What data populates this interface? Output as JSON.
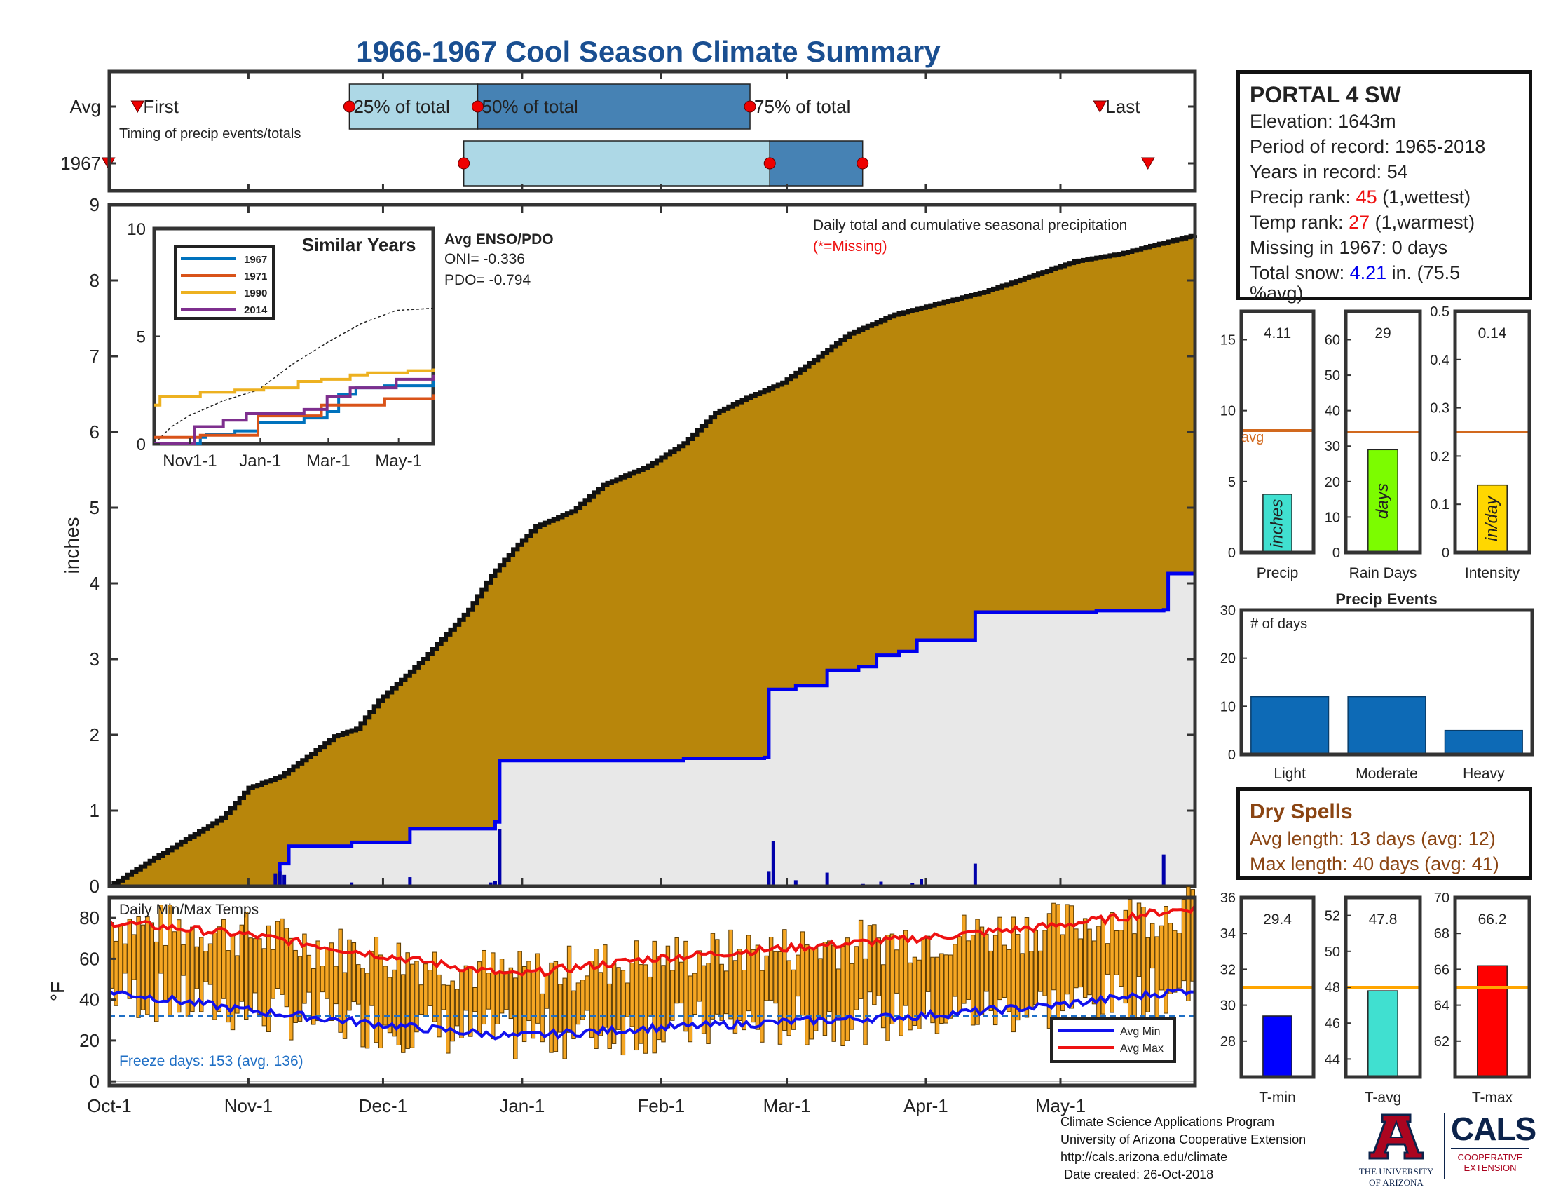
{
  "title": "1966-1967 Cool Season Climate Summary",
  "colors": {
    "title": "#1a4f91",
    "precip_fill": "#b8860b",
    "gray_fill": "#e8e8e8",
    "accent_blue": "#0000ee",
    "red": "#ee1111",
    "orange_bar": "#f5a623",
    "avg_line": "#d2691e",
    "light_blue_box": "#add8e6",
    "dark_blue_box": "#4682b4",
    "event_bar": "#0d6ab6",
    "drought_brown": "#8b4513"
  },
  "timing": {
    "rows": [
      "Avg",
      "1967"
    ],
    "labels": {
      "first": "First",
      "p25": "25% of total",
      "p50": "50% of total",
      "p75": "75% of total",
      "last": "Last"
    },
    "caption": "Timing of precip events/totals",
    "avg": {
      "first": 6.3,
      "p25": 53.5,
      "p50": 82.1,
      "p75": 142.8,
      "last": 220.8
    },
    "year": {
      "first": -0.2,
      "p25": 79.0,
      "p50": 147.2,
      "p75": 167.9,
      "last": 231.5
    }
  },
  "main_chart": {
    "ylabel": "inches",
    "ylim": [
      0,
      9
    ],
    "yticks": [
      0,
      1,
      2,
      3,
      4,
      5,
      6,
      7,
      8,
      9
    ],
    "xtick_labels": [
      "Oct-1",
      "Nov-1",
      "Dec-1",
      "Jan-1",
      "Feb-1",
      "Mar-1",
      "Apr-1",
      "May-1"
    ],
    "xtick_days": [
      0,
      31,
      61,
      92,
      123,
      151,
      182,
      212
    ],
    "days_total": 242,
    "caption_line1": "Daily total and cumulative seasonal precipitation",
    "caption_line2": "(*=Missing)",
    "avg_cumulative": [
      [
        0,
        0
      ],
      [
        8,
        0.3
      ],
      [
        15,
        0.55
      ],
      [
        25,
        0.9
      ],
      [
        31,
        1.3
      ],
      [
        38,
        1.45
      ],
      [
        45,
        1.75
      ],
      [
        50,
        1.98
      ],
      [
        55,
        2.08
      ],
      [
        60,
        2.45
      ],
      [
        70,
        3.0
      ],
      [
        80,
        3.65
      ],
      [
        85,
        4.1
      ],
      [
        90,
        4.45
      ],
      [
        95,
        4.75
      ],
      [
        103,
        4.95
      ],
      [
        110,
        5.3
      ],
      [
        120,
        5.55
      ],
      [
        128,
        5.85
      ],
      [
        135,
        6.25
      ],
      [
        142,
        6.45
      ],
      [
        150,
        6.65
      ],
      [
        157,
        6.95
      ],
      [
        165,
        7.3
      ],
      [
        175,
        7.55
      ],
      [
        185,
        7.7
      ],
      [
        195,
        7.85
      ],
      [
        205,
        8.05
      ],
      [
        215,
        8.25
      ],
      [
        225,
        8.35
      ],
      [
        235,
        8.5
      ],
      [
        242,
        8.6
      ]
    ],
    "year_cumulative": [
      [
        0,
        0
      ],
      [
        36,
        0.0
      ],
      [
        38,
        0.3
      ],
      [
        40,
        0.53
      ],
      [
        54,
        0.58
      ],
      [
        67,
        0.76
      ],
      [
        86,
        0.85
      ],
      [
        87,
        1.66
      ],
      [
        128,
        1.69
      ],
      [
        146,
        1.7
      ],
      [
        147,
        2.6
      ],
      [
        153,
        2.65
      ],
      [
        160,
        2.85
      ],
      [
        167,
        2.9
      ],
      [
        171,
        3.05
      ],
      [
        176,
        3.1
      ],
      [
        180,
        3.25
      ],
      [
        193,
        3.62
      ],
      [
        215,
        3.62
      ],
      [
        220,
        3.64
      ],
      [
        235,
        3.65
      ],
      [
        236,
        4.13
      ],
      [
        242,
        4.13
      ]
    ],
    "daily_precip": [
      [
        37,
        0.17
      ],
      [
        38,
        0.2
      ],
      [
        39,
        0.15
      ],
      [
        54,
        0.05
      ],
      [
        67,
        0.12
      ],
      [
        85,
        0.05
      ],
      [
        86,
        0.07
      ],
      [
        87,
        0.75
      ],
      [
        147,
        0.2
      ],
      [
        148,
        0.6
      ],
      [
        153,
        0.08
      ],
      [
        160,
        0.18
      ],
      [
        168,
        0.03
      ],
      [
        172,
        0.06
      ],
      [
        179,
        0.04
      ],
      [
        181,
        0.1
      ],
      [
        193,
        0.3
      ],
      [
        235,
        0.42
      ]
    ]
  },
  "inset": {
    "title": "Similar Years",
    "ylim": [
      0,
      10
    ],
    "yticks": [
      0,
      5,
      10
    ],
    "xtick_labels": [
      "Nov1-1",
      "Jan-1",
      "Mar-1",
      "May-1"
    ],
    "xtick_days": [
      31,
      92,
      151,
      212
    ],
    "enso_title": "Avg ENSO/PDO",
    "oni": "ONI= -0.336",
    "pdo": "PDO= -0.794",
    "series": [
      {
        "name": "1967",
        "color": "#0072bd",
        "points": [
          [
            0,
            0
          ],
          [
            40,
            0.3
          ],
          [
            45,
            0.45
          ],
          [
            70,
            0.6
          ],
          [
            90,
            1.0
          ],
          [
            130,
            1.2
          ],
          [
            150,
            1.5
          ],
          [
            160,
            2.3
          ],
          [
            175,
            2.6
          ],
          [
            200,
            2.7
          ],
          [
            242,
            3.0
          ]
        ]
      },
      {
        "name": "1971",
        "color": "#d95319",
        "points": [
          [
            0,
            0.3
          ],
          [
            40,
            0.4
          ],
          [
            90,
            1.3
          ],
          [
            130,
            1.3
          ],
          [
            145,
            1.8
          ],
          [
            185,
            1.8
          ],
          [
            200,
            2.1
          ],
          [
            242,
            2.3
          ]
        ]
      },
      {
        "name": "1990",
        "color": "#edb120",
        "points": [
          [
            0,
            1.8
          ],
          [
            5,
            2.2
          ],
          [
            40,
            2.4
          ],
          [
            70,
            2.5
          ],
          [
            95,
            2.6
          ],
          [
            125,
            2.9
          ],
          [
            145,
            3.0
          ],
          [
            170,
            3.2
          ],
          [
            185,
            3.3
          ],
          [
            220,
            3.4
          ],
          [
            242,
            3.5
          ]
        ]
      },
      {
        "name": "2014",
        "color": "#7e2f8e",
        "points": [
          [
            0,
            0
          ],
          [
            30,
            0
          ],
          [
            35,
            0.8
          ],
          [
            60,
            1.1
          ],
          [
            80,
            1.4
          ],
          [
            130,
            1.6
          ],
          [
            150,
            2.2
          ],
          [
            170,
            2.6
          ],
          [
            210,
            3.0
          ],
          [
            242,
            3.2
          ]
        ]
      }
    ],
    "avg_dashed": [
      [
        0,
        0
      ],
      [
        15,
        0.8
      ],
      [
        30,
        1.3
      ],
      [
        60,
        2.0
      ],
      [
        90,
        2.5
      ],
      [
        120,
        3.7
      ],
      [
        150,
        4.7
      ],
      [
        180,
        5.6
      ],
      [
        210,
        6.2
      ],
      [
        242,
        6.3
      ]
    ]
  },
  "temps": {
    "title": "Daily Min/Max Temps",
    "ylabel": "°F",
    "ylim": [
      -2,
      90
    ],
    "yticks": [
      0,
      20,
      40,
      60,
      80
    ],
    "freeze_label": "Freeze days: 153 (avg. 136)",
    "freeze_line": 32,
    "legend_min": "Avg Min",
    "legend_max": "Avg Max",
    "avg_max": [
      [
        0,
        78
      ],
      [
        30,
        72
      ],
      [
        60,
        62
      ],
      [
        90,
        52
      ],
      [
        120,
        60
      ],
      [
        150,
        65
      ],
      [
        180,
        70
      ],
      [
        210,
        76
      ],
      [
        242,
        85
      ]
    ],
    "avg_min": [
      [
        0,
        44
      ],
      [
        30,
        35
      ],
      [
        60,
        28
      ],
      [
        90,
        22
      ],
      [
        120,
        26
      ],
      [
        150,
        29
      ],
      [
        180,
        32
      ],
      [
        210,
        37
      ],
      [
        242,
        45
      ]
    ]
  },
  "info_box": {
    "station": "PORTAL 4 SW",
    "elevation": "Elevation: 1643m",
    "period": "Period of record: 1965-2018",
    "years": "Years in record: 54",
    "precip_rank_pre": "Precip rank: ",
    "precip_rank_val": "45",
    "precip_rank_post": " (1,wettest)",
    "temp_rank_pre": "Temp rank: ",
    "temp_rank_val": "27",
    "temp_rank_post": " (1,warmest)",
    "missing": "Missing in 1967: 0 days",
    "snow_pre": "Total snow: ",
    "snow_val": "4.21",
    "snow_post": " in. (75.5",
    "snow_post2": "%avg)"
  },
  "mini_precip": [
    {
      "label": "Precip",
      "unit": "inches",
      "value": 4.11,
      "value_text": "4.11",
      "avg": 8.6,
      "ylim": [
        0,
        17
      ],
      "yticks": [
        0,
        5,
        10,
        15
      ],
      "color": "#40e0d0",
      "avg_text": "avg"
    },
    {
      "label": "Rain Days",
      "unit": "days",
      "value": 29,
      "value_text": "29",
      "avg": 34,
      "ylim": [
        0,
        68
      ],
      "yticks": [
        0,
        10,
        20,
        30,
        40,
        50,
        60
      ],
      "color": "#7cfc00"
    },
    {
      "label": "Intensity",
      "unit": "in/day",
      "value": 0.14,
      "value_text": "0.14",
      "avg": 0.25,
      "ylim": [
        0,
        0.5
      ],
      "yticks": [
        0,
        0.1,
        0.2,
        0.3,
        0.4,
        0.5
      ],
      "color": "#ffd700"
    }
  ],
  "events": {
    "title": "Precip Events",
    "ylabel_in": "# of days",
    "ylim": [
      0,
      30
    ],
    "yticks": [
      0,
      10,
      20,
      30
    ],
    "categories": [
      "Light",
      "Moderate",
      "Heavy"
    ],
    "values": [
      12,
      12,
      5
    ]
  },
  "dry_spells": {
    "title": "Dry Spells",
    "avg_length": "Avg length: 13 days (avg: 12)",
    "max_length": "Max length: 40 days (avg: 41)"
  },
  "mini_temps": [
    {
      "label": "T-min",
      "value": 29.4,
      "value_text": "29.4",
      "avg": 31,
      "ylim": [
        26,
        36
      ],
      "yticks": [
        28,
        30,
        32,
        34,
        36
      ],
      "color": "#0000ff"
    },
    {
      "label": "T-avg",
      "value": 47.8,
      "value_text": "47.8",
      "avg": 48,
      "ylim": [
        43,
        53
      ],
      "yticks": [
        44,
        46,
        48,
        50,
        52
      ],
      "color": "#40e0d0"
    },
    {
      "label": "T-max",
      "value": 66.2,
      "value_text": "66.2",
      "avg": 65,
      "ylim": [
        60,
        70
      ],
      "yticks": [
        62,
        64,
        66,
        68,
        70
      ],
      "color": "#ff0000"
    }
  ],
  "footer": {
    "line1": "Climate Science Applications Program",
    "line2": "University of Arizona Cooperative Extension",
    "line3": "http://cals.arizona.edu/climate",
    "line4": " Date created: 26-Oct-2018",
    "ua_line1": "THE UNIVERSITY",
    "ua_line2": "OF ARIZONA",
    "cals": "CALS",
    "coop1": "COOPERATIVE",
    "coop2": "EXTENSION"
  }
}
